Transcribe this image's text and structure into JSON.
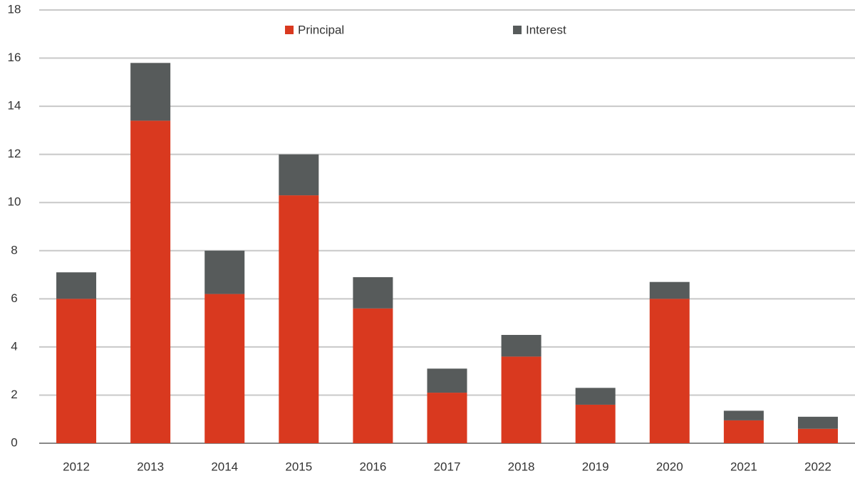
{
  "chart_data": {
    "type": "stacked_bar",
    "categories": [
      "2012",
      "2013",
      "2014",
      "2015",
      "2016",
      "2017",
      "2018",
      "2019",
      "2020",
      "2021",
      "2022"
    ],
    "series": [
      {
        "name": "Principal",
        "color": "#d9391f",
        "values": [
          6.0,
          13.4,
          6.2,
          10.3,
          5.6,
          2.1,
          3.6,
          1.6,
          6.0,
          0.95,
          0.6
        ]
      },
      {
        "name": "Interest",
        "color": "#575b5b",
        "values": [
          1.1,
          2.4,
          1.8,
          1.7,
          1.3,
          1.0,
          0.9,
          0.7,
          0.7,
          0.4,
          0.5
        ]
      }
    ],
    "ylim": [
      0,
      18
    ],
    "yticks": [
      0,
      2,
      4,
      6,
      8,
      10,
      12,
      14,
      16,
      18
    ],
    "grid": true,
    "legend": "top"
  }
}
